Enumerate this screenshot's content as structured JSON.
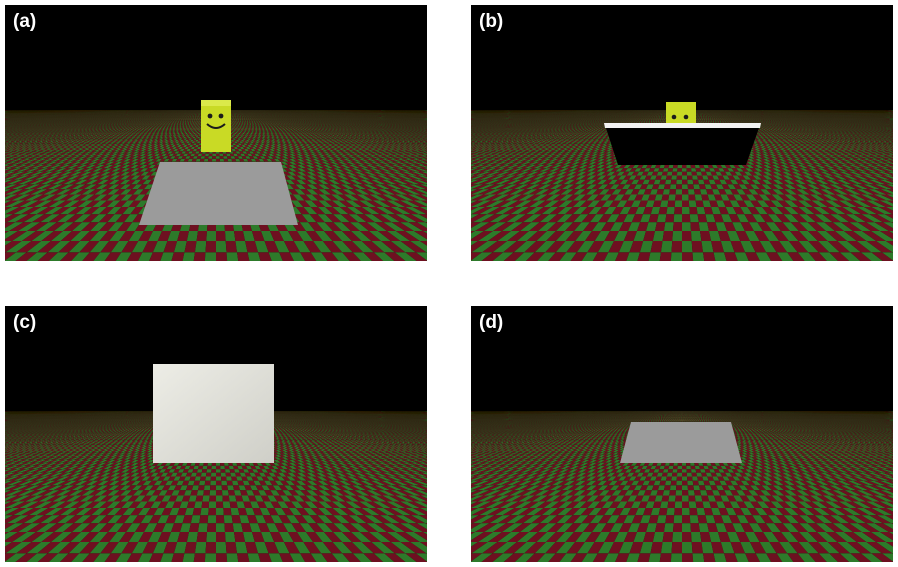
{
  "panels": [
    {
      "label": "(a)",
      "scene": "floor-plate-with-smiley-block"
    },
    {
      "label": "(b)",
      "scene": "smiley-block-behind-tilted-black-plate"
    },
    {
      "label": "(c)",
      "scene": "upright-white-square"
    },
    {
      "label": "(d)",
      "scene": "floor-plate-only"
    }
  ],
  "colors": {
    "sky": "#000000",
    "checker_red": "#6e1020",
    "checker_green": "#2d7a2a",
    "plate_grey": "#9a9a9a",
    "smiley_yellow": "#cfe02a",
    "square_white": "#e2e2dc"
  }
}
